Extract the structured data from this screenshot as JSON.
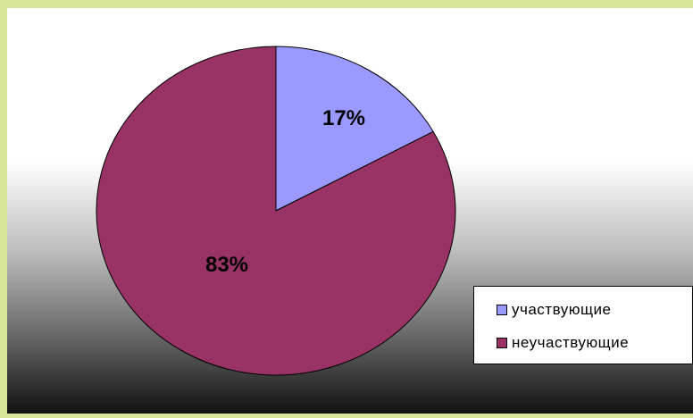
{
  "chart_data": {
    "type": "pie",
    "slices": [
      {
        "label": "участвующие",
        "value": 17,
        "display": "17%",
        "color": "#9999ff"
      },
      {
        "label": "неучаствующие",
        "value": 83,
        "display": "83%",
        "color": "#993366"
      }
    ],
    "title": "",
    "legend_position": "bottom-right",
    "background": "gradient white to black"
  }
}
